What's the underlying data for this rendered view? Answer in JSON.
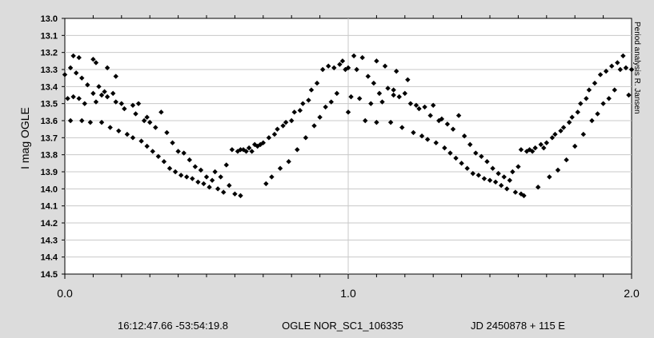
{
  "colors": {
    "background": "#dcdcdc",
    "plot_area": "#ffffff",
    "grid": "#c8c8c8",
    "marker": "#000000"
  },
  "side_note": "Period analysis  R. Jansen",
  "footer": {
    "coords": "16:12:47.66 -53:54:19.8",
    "object": "OGLE NOR_SC1_106335",
    "epoch": "JD 2450878 + 115 E"
  },
  "chart_data": {
    "type": "scatter",
    "ylabel": "I mag OGLE",
    "xlabel": "",
    "xlim": [
      0.0,
      2.0
    ],
    "ylim": [
      13.0,
      14.5
    ],
    "y_inverted": true,
    "x_ticks": [
      0.0,
      1.0,
      2.0
    ],
    "x_tick_labels": [
      "0.0",
      "1.0",
      "2.0"
    ],
    "y_ticks": [
      13.0,
      13.1,
      13.2,
      13.3,
      13.4,
      13.5,
      13.6,
      13.7,
      13.8,
      13.9,
      14.0,
      14.1,
      14.2,
      14.3,
      14.4,
      14.5
    ],
    "y_tick_labels": [
      "13.0",
      "13.1",
      "13.2",
      "13.3",
      "13.4",
      "13.5",
      "13.6",
      "13.7",
      "13.8",
      "13.9",
      "14.0",
      "14.1",
      "14.2",
      "14.3",
      "14.4",
      "14.5"
    ],
    "grid": "major x at 1.0 and horizontal at every 0.1 mag",
    "marker": "diamond",
    "points": [
      [
        0.0,
        13.33
      ],
      [
        0.01,
        13.47
      ],
      [
        0.02,
        13.6
      ],
      [
        0.02,
        13.29
      ],
      [
        0.03,
        13.46
      ],
      [
        0.03,
        13.22
      ],
      [
        0.04,
        13.32
      ],
      [
        0.05,
        13.47
      ],
      [
        0.05,
        13.23
      ],
      [
        0.06,
        13.6
      ],
      [
        0.06,
        13.35
      ],
      [
        0.07,
        13.5
      ],
      [
        0.08,
        13.39
      ],
      [
        0.09,
        13.61
      ],
      [
        0.1,
        13.24
      ],
      [
        0.1,
        13.44
      ],
      [
        0.11,
        13.49
      ],
      [
        0.11,
        13.26
      ],
      [
        0.12,
        13.4
      ],
      [
        0.13,
        13.61
      ],
      [
        0.13,
        13.45
      ],
      [
        0.14,
        13.43
      ],
      [
        0.15,
        13.29
      ],
      [
        0.15,
        13.46
      ],
      [
        0.16,
        13.64
      ],
      [
        0.17,
        13.44
      ],
      [
        0.18,
        13.34
      ],
      [
        0.18,
        13.49
      ],
      [
        0.19,
        13.66
      ],
      [
        0.2,
        13.5
      ],
      [
        0.21,
        13.53
      ],
      [
        0.22,
        13.68
      ],
      [
        0.24,
        13.51
      ],
      [
        0.24,
        13.7
      ],
      [
        0.25,
        13.56
      ],
      [
        0.26,
        13.5
      ],
      [
        0.27,
        13.72
      ],
      [
        0.28,
        13.6
      ],
      [
        0.29,
        13.58
      ],
      [
        0.29,
        13.75
      ],
      [
        0.3,
        13.61
      ],
      [
        0.31,
        13.78
      ],
      [
        0.32,
        13.64
      ],
      [
        0.33,
        13.81
      ],
      [
        0.34,
        13.55
      ],
      [
        0.35,
        13.84
      ],
      [
        0.36,
        13.67
      ],
      [
        0.37,
        13.88
      ],
      [
        0.38,
        13.73
      ],
      [
        0.39,
        13.9
      ],
      [
        0.4,
        13.78
      ],
      [
        0.41,
        13.92
      ],
      [
        0.42,
        13.79
      ],
      [
        0.43,
        13.93
      ],
      [
        0.44,
        13.83
      ],
      [
        0.45,
        13.94
      ],
      [
        0.46,
        13.87
      ],
      [
        0.47,
        13.96
      ],
      [
        0.48,
        13.89
      ],
      [
        0.49,
        13.97
      ],
      [
        0.5,
        13.93
      ],
      [
        0.51,
        13.99
      ],
      [
        0.52,
        13.95
      ],
      [
        0.53,
        13.9
      ],
      [
        0.54,
        14.0
      ],
      [
        0.55,
        13.93
      ],
      [
        0.56,
        14.02
      ],
      [
        0.57,
        13.86
      ],
      [
        0.58,
        13.98
      ],
      [
        0.59,
        13.77
      ],
      [
        0.6,
        14.03
      ],
      [
        0.61,
        13.78
      ],
      [
        0.62,
        14.04
      ],
      [
        0.62,
        13.77
      ],
      [
        0.63,
        13.77
      ],
      [
        0.64,
        13.78
      ],
      [
        0.65,
        13.76
      ],
      [
        0.66,
        13.78
      ],
      [
        0.67,
        13.74
      ],
      [
        0.68,
        13.75
      ],
      [
        0.69,
        13.74
      ],
      [
        0.7,
        13.73
      ],
      [
        0.71,
        13.97
      ],
      [
        0.72,
        13.7
      ],
      [
        0.73,
        13.93
      ],
      [
        0.74,
        13.68
      ],
      [
        0.75,
        13.65
      ],
      [
        0.76,
        13.88
      ],
      [
        0.77,
        13.63
      ],
      [
        0.78,
        13.61
      ],
      [
        0.79,
        13.84
      ],
      [
        0.8,
        13.6
      ],
      [
        0.81,
        13.55
      ],
      [
        0.82,
        13.77
      ],
      [
        0.83,
        13.54
      ],
      [
        0.84,
        13.5
      ],
      [
        0.85,
        13.7
      ],
      [
        0.86,
        13.48
      ],
      [
        0.87,
        13.42
      ],
      [
        0.88,
        13.63
      ],
      [
        0.89,
        13.38
      ],
      [
        0.9,
        13.58
      ],
      [
        0.91,
        13.3
      ],
      [
        0.92,
        13.52
      ],
      [
        0.93,
        13.28
      ],
      [
        0.94,
        13.49
      ],
      [
        0.95,
        13.29
      ],
      [
        0.96,
        13.44
      ],
      [
        0.97,
        13.27
      ],
      [
        0.98,
        13.25
      ],
      [
        0.99,
        13.3
      ],
      [
        1.0,
        13.55
      ],
      [
        1.0,
        13.29
      ],
      [
        1.01,
        13.46
      ],
      [
        1.02,
        13.22
      ],
      [
        1.03,
        13.3
      ],
      [
        1.04,
        13.47
      ],
      [
        1.05,
        13.23
      ],
      [
        1.06,
        13.6
      ],
      [
        1.07,
        13.34
      ],
      [
        1.08,
        13.5
      ],
      [
        1.09,
        13.38
      ],
      [
        1.1,
        13.61
      ],
      [
        1.1,
        13.25
      ],
      [
        1.11,
        13.44
      ],
      [
        1.12,
        13.49
      ],
      [
        1.13,
        13.28
      ],
      [
        1.14,
        13.41
      ],
      [
        1.15,
        13.61
      ],
      [
        1.16,
        13.45
      ],
      [
        1.16,
        13.42
      ],
      [
        1.17,
        13.31
      ],
      [
        1.18,
        13.46
      ],
      [
        1.19,
        13.64
      ],
      [
        1.2,
        13.44
      ],
      [
        1.21,
        13.36
      ],
      [
        1.22,
        13.5
      ],
      [
        1.23,
        13.67
      ],
      [
        1.24,
        13.51
      ],
      [
        1.25,
        13.53
      ],
      [
        1.26,
        13.69
      ],
      [
        1.27,
        13.52
      ],
      [
        1.28,
        13.71
      ],
      [
        1.29,
        13.57
      ],
      [
        1.3,
        13.51
      ],
      [
        1.31,
        13.73
      ],
      [
        1.32,
        13.6
      ],
      [
        1.33,
        13.59
      ],
      [
        1.34,
        13.76
      ],
      [
        1.35,
        13.62
      ],
      [
        1.36,
        13.79
      ],
      [
        1.37,
        13.65
      ],
      [
        1.38,
        13.82
      ],
      [
        1.39,
        13.57
      ],
      [
        1.4,
        13.85
      ],
      [
        1.41,
        13.69
      ],
      [
        1.42,
        13.88
      ],
      [
        1.43,
        13.74
      ],
      [
        1.44,
        13.91
      ],
      [
        1.45,
        13.79
      ],
      [
        1.46,
        13.92
      ],
      [
        1.47,
        13.81
      ],
      [
        1.48,
        13.94
      ],
      [
        1.49,
        13.84
      ],
      [
        1.5,
        13.95
      ],
      [
        1.51,
        13.88
      ],
      [
        1.52,
        13.96
      ],
      [
        1.53,
        13.91
      ],
      [
        1.54,
        13.98
      ],
      [
        1.55,
        13.93
      ],
      [
        1.56,
        14.0
      ],
      [
        1.57,
        13.95
      ],
      [
        1.58,
        13.9
      ],
      [
        1.59,
        14.02
      ],
      [
        1.6,
        13.87
      ],
      [
        1.61,
        14.03
      ],
      [
        1.61,
        13.77
      ],
      [
        1.62,
        14.04
      ],
      [
        1.63,
        13.78
      ],
      [
        1.64,
        13.77
      ],
      [
        1.65,
        13.78
      ],
      [
        1.66,
        13.76
      ],
      [
        1.67,
        13.99
      ],
      [
        1.68,
        13.74
      ],
      [
        1.69,
        13.76
      ],
      [
        1.7,
        13.73
      ],
      [
        1.71,
        13.93
      ],
      [
        1.72,
        13.7
      ],
      [
        1.73,
        13.68
      ],
      [
        1.74,
        13.89
      ],
      [
        1.75,
        13.66
      ],
      [
        1.76,
        13.64
      ],
      [
        1.77,
        13.83
      ],
      [
        1.78,
        13.61
      ],
      [
        1.79,
        13.58
      ],
      [
        1.8,
        13.75
      ],
      [
        1.81,
        13.55
      ],
      [
        1.82,
        13.5
      ],
      [
        1.83,
        13.68
      ],
      [
        1.84,
        13.47
      ],
      [
        1.85,
        13.42
      ],
      [
        1.86,
        13.6
      ],
      [
        1.87,
        13.38
      ],
      [
        1.88,
        13.56
      ],
      [
        1.89,
        13.33
      ],
      [
        1.9,
        13.5
      ],
      [
        1.91,
        13.31
      ],
      [
        1.92,
        13.47
      ],
      [
        1.93,
        13.28
      ],
      [
        1.94,
        13.42
      ],
      [
        1.95,
        13.26
      ],
      [
        1.96,
        13.3
      ],
      [
        1.97,
        13.22
      ],
      [
        1.98,
        13.29
      ],
      [
        1.99,
        13.45
      ],
      [
        2.0,
        13.3
      ]
    ]
  }
}
